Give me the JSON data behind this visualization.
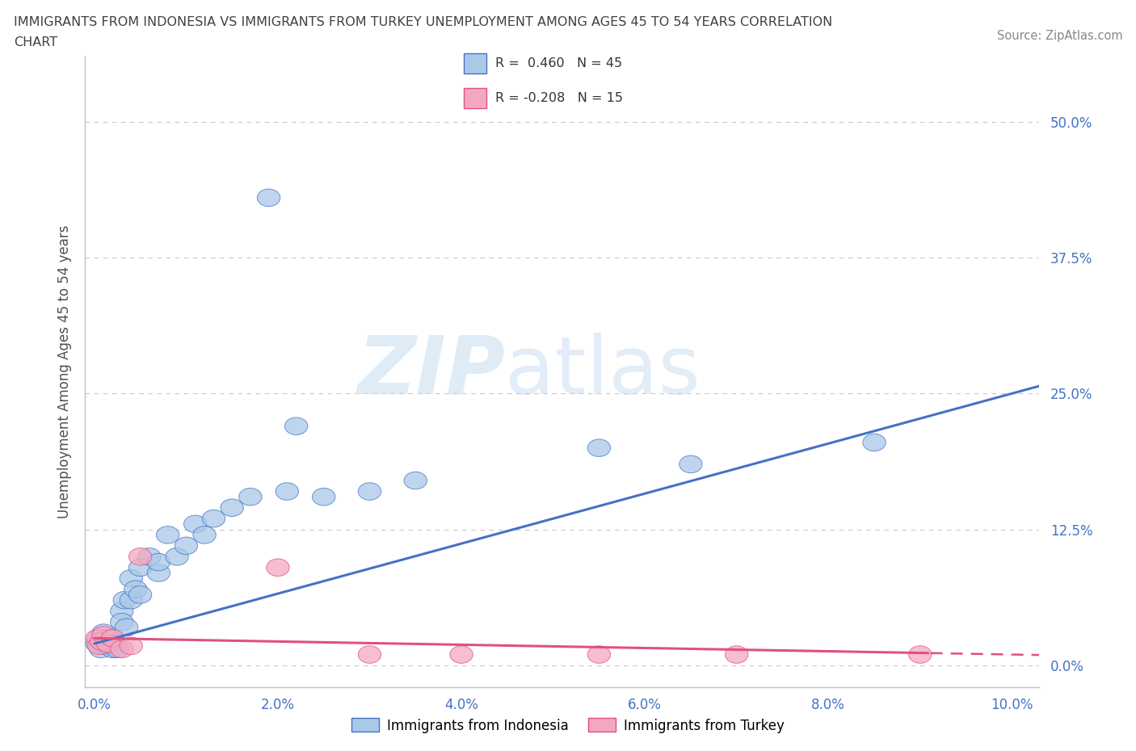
{
  "title_line1": "IMMIGRANTS FROM INDONESIA VS IMMIGRANTS FROM TURKEY UNEMPLOYMENT AMONG AGES 45 TO 54 YEARS CORRELATION",
  "title_line2": "CHART",
  "source": "Source: ZipAtlas.com",
  "ylabel": "Unemployment Among Ages 45 to 54 years",
  "xlim": [
    -0.001,
    0.103
  ],
  "ylim": [
    -0.02,
    0.56
  ],
  "yticks": [
    0.0,
    0.125,
    0.25,
    0.375,
    0.5
  ],
  "ytick_labels": [
    "0.0%",
    "12.5%",
    "25.0%",
    "37.5%",
    "50.0%"
  ],
  "xticks": [
    0.0,
    0.02,
    0.04,
    0.06,
    0.08,
    0.1
  ],
  "xtick_labels": [
    "0.0%",
    "2.0%",
    "4.0%",
    "6.0%",
    "8.0%",
    "10.0%"
  ],
  "watermark_ZIP": "ZIP",
  "watermark_atlas": "atlas",
  "R_indo": 0.46,
  "N_indo": 45,
  "R_turk": -0.208,
  "N_turk": 15,
  "legend_label1": "Immigrants from Indonesia",
  "legend_label2": "Immigrants from Turkey",
  "color_indonesia": "#aac8e8",
  "color_turkey": "#f4a8c0",
  "line_color_indonesia": "#4472c4",
  "line_color_turkey": "#e05080",
  "title_color": "#404040",
  "axis_label_color": "#4472c4",
  "background_color": "#ffffff",
  "grid_color": "#c8c8c8",
  "indo_x": [
    0.0003,
    0.0005,
    0.0007,
    0.001,
    0.001,
    0.0012,
    0.0013,
    0.0014,
    0.0015,
    0.0016,
    0.0018,
    0.002,
    0.002,
    0.0022,
    0.0023,
    0.0025,
    0.003,
    0.003,
    0.0033,
    0.0035,
    0.004,
    0.004,
    0.0045,
    0.005,
    0.005,
    0.006,
    0.007,
    0.007,
    0.008,
    0.009,
    0.01,
    0.011,
    0.012,
    0.013,
    0.015,
    0.017,
    0.019,
    0.021,
    0.022,
    0.025,
    0.03,
    0.035,
    0.055,
    0.065,
    0.085
  ],
  "indo_y": [
    0.02,
    0.025,
    0.015,
    0.02,
    0.03,
    0.018,
    0.025,
    0.02,
    0.022,
    0.018,
    0.02,
    0.015,
    0.025,
    0.02,
    0.018,
    0.015,
    0.05,
    0.04,
    0.06,
    0.035,
    0.06,
    0.08,
    0.07,
    0.065,
    0.09,
    0.1,
    0.085,
    0.095,
    0.12,
    0.1,
    0.11,
    0.13,
    0.12,
    0.135,
    0.145,
    0.155,
    0.43,
    0.16,
    0.22,
    0.155,
    0.16,
    0.17,
    0.2,
    0.185,
    0.205
  ],
  "turk_x": [
    0.0003,
    0.0005,
    0.0008,
    0.001,
    0.0015,
    0.002,
    0.003,
    0.004,
    0.005,
    0.02,
    0.03,
    0.04,
    0.055,
    0.07,
    0.09
  ],
  "turk_y": [
    0.025,
    0.018,
    0.022,
    0.028,
    0.02,
    0.025,
    0.015,
    0.018,
    0.1,
    0.09,
    0.01,
    0.01,
    0.01,
    0.01,
    0.01
  ]
}
